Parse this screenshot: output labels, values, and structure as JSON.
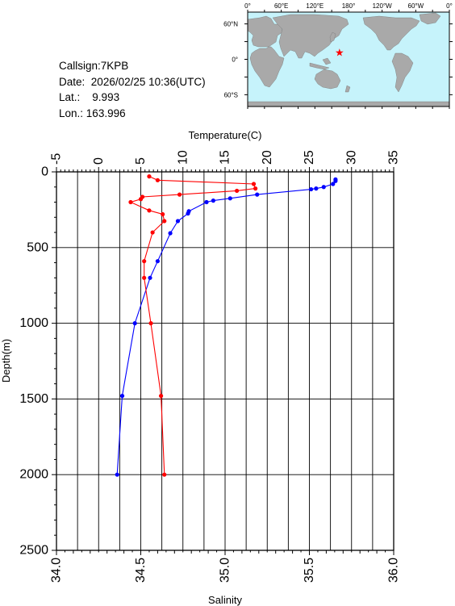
{
  "header": {
    "callsign_label": "Callsign:",
    "callsign": "7KPB",
    "date_label": "Date:",
    "date": "2026/02/25 10:36(UTC)",
    "lat_label": "Lat.:",
    "lat": "9.993",
    "lon_label": "Lon.:",
    "lon": "163.996"
  },
  "map": {
    "top_labels": [
      "0°",
      "60°E",
      "120°E",
      "180°",
      "120°W",
      "60°W",
      "0°"
    ],
    "side_labels": [
      "60°N",
      "0°",
      "60°S"
    ],
    "marker_lat": 9.993,
    "marker_lon": 163.996,
    "ocean_color": "#c6f3fb",
    "land_color": "#a9a9a9",
    "marker_color": "#ff0000",
    "marker_icon": "star-icon"
  },
  "chart_data": {
    "type": "line",
    "title": "",
    "ylabel": "Depth(m)",
    "ylim": [
      2500,
      0
    ],
    "yticks": [
      "0",
      "500",
      "1000",
      "1500",
      "2000",
      "2500"
    ],
    "temperature_axis": {
      "label": "Temperature(C)",
      "range": [
        -5,
        35
      ],
      "ticks": [
        "-5",
        "0",
        "5",
        "10",
        "15",
        "20",
        "25",
        "30",
        "35"
      ]
    },
    "salinity_axis": {
      "label": "Salinity",
      "range": [
        34.0,
        36.0
      ],
      "ticks": [
        "34.0",
        "34.5",
        "35.0",
        "35.5",
        "36.0"
      ]
    },
    "grid": true,
    "series": [
      {
        "quantity": "temperature",
        "color": "#0000ff",
        "points": [
          {
            "x": 28.1,
            "y": 50
          },
          {
            "x": 28.1,
            "y": 60
          },
          {
            "x": 27.8,
            "y": 80
          },
          {
            "x": 26.7,
            "y": 100
          },
          {
            "x": 25.8,
            "y": 110
          },
          {
            "x": 25.2,
            "y": 115
          },
          {
            "x": 18.8,
            "y": 150
          },
          {
            "x": 15.6,
            "y": 175
          },
          {
            "x": 13.6,
            "y": 190
          },
          {
            "x": 12.8,
            "y": 200
          },
          {
            "x": 10.7,
            "y": 260
          },
          {
            "x": 10.6,
            "y": 275
          },
          {
            "x": 9.4,
            "y": 325
          },
          {
            "x": 8.5,
            "y": 405
          },
          {
            "x": 7.0,
            "y": 590
          },
          {
            "x": 6.1,
            "y": 700
          },
          {
            "x": 4.3,
            "y": 1000
          },
          {
            "x": 2.8,
            "y": 1480
          },
          {
            "x": 2.2,
            "y": 2000
          }
        ]
      },
      {
        "quantity": "salinity",
        "color": "#ff0000",
        "points": [
          {
            "x": 34.55,
            "y": 30
          },
          {
            "x": 34.6,
            "y": 55
          },
          {
            "x": 35.17,
            "y": 80
          },
          {
            "x": 35.18,
            "y": 110
          },
          {
            "x": 35.07,
            "y": 125
          },
          {
            "x": 34.73,
            "y": 150
          },
          {
            "x": 34.51,
            "y": 165
          },
          {
            "x": 34.5,
            "y": 180
          },
          {
            "x": 34.44,
            "y": 200
          },
          {
            "x": 34.55,
            "y": 255
          },
          {
            "x": 34.63,
            "y": 280
          },
          {
            "x": 34.64,
            "y": 325
          },
          {
            "x": 34.57,
            "y": 400
          },
          {
            "x": 34.52,
            "y": 590
          },
          {
            "x": 34.52,
            "y": 700
          },
          {
            "x": 34.56,
            "y": 1000
          },
          {
            "x": 34.62,
            "y": 1480
          },
          {
            "x": 34.64,
            "y": 2000
          }
        ]
      }
    ]
  }
}
